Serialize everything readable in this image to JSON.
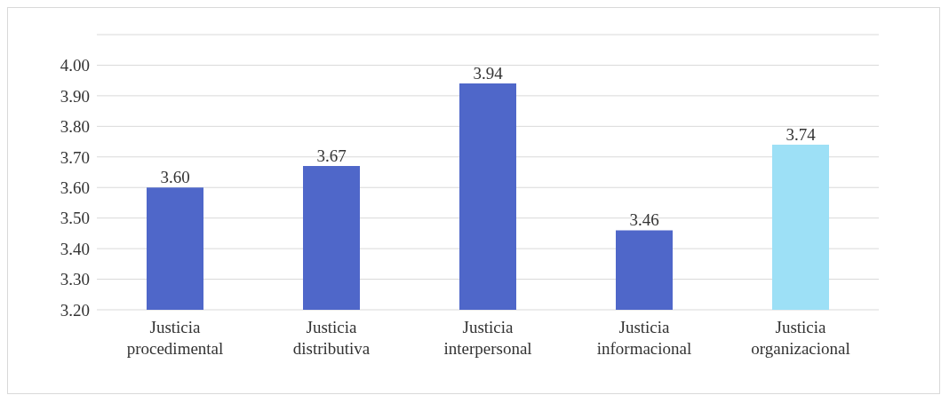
{
  "chart_data": {
    "type": "bar",
    "categories": [
      "Justicia procedimental",
      "Justicia distributiva",
      "Justicia interpersonal",
      "Justicia informacional",
      "Justicia organizacional"
    ],
    "values": [
      3.6,
      3.67,
      3.94,
      3.46,
      3.74
    ],
    "colors": [
      "#4f67c9",
      "#4f67c9",
      "#4f67c9",
      "#4f67c9",
      "#9de0f6"
    ],
    "value_labels": [
      "3.60",
      "3.67",
      "3.94",
      "3.46",
      "3.74"
    ],
    "ylim": [
      3.2,
      4.1
    ],
    "yticks": [
      {
        "value": 3.2,
        "label": "3.20"
      },
      {
        "value": 3.3,
        "label": "3.30"
      },
      {
        "value": 3.4,
        "label": "3.40"
      },
      {
        "value": 3.5,
        "label": "3.50"
      },
      {
        "value": 3.6,
        "label": "3.60"
      },
      {
        "value": 3.7,
        "label": "3.70"
      },
      {
        "value": 3.8,
        "label": "3.80"
      },
      {
        "value": 3.9,
        "label": "3.90"
      },
      {
        "value": 4.0,
        "label": "4.00"
      },
      {
        "value": 4.1,
        "label": null
      }
    ],
    "grid": "y",
    "legend": false
  }
}
